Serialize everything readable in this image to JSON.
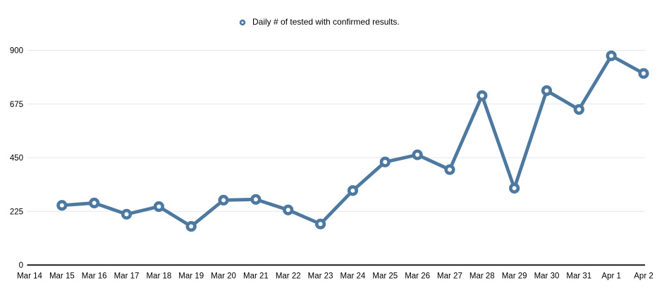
{
  "chart_data": {
    "type": "line",
    "legend": "Daily # of tested with confirmed results.",
    "legend_position": "top-center",
    "categories": [
      "Mar 14",
      "Mar 15",
      "Mar 16",
      "Mar 17",
      "Mar 18",
      "Mar 19",
      "Mar 20",
      "Mar 21",
      "Mar 22",
      "Mar 23",
      "Mar 24",
      "Mar 25",
      "Mar 26",
      "Mar 27",
      "Mar 28",
      "Mar 29",
      "Mar 30",
      "Mar 31",
      "Apr 1",
      "Apr 2"
    ],
    "series": [
      {
        "name": "Daily # of tested with confirmed results.",
        "values": [
          null,
          250,
          260,
          213,
          245,
          162,
          272,
          275,
          231,
          172,
          312,
          432,
          462,
          400,
          710,
          322,
          731,
          652,
          877,
          803
        ]
      }
    ],
    "yticks": [
      0,
      225,
      450,
      675,
      900
    ],
    "ylim": [
      0,
      900
    ],
    "grid": true,
    "colors": {
      "series": "#4d79a1",
      "grid": "#e7e7e7",
      "axis": "#1a1a1a",
      "text": "#000000",
      "marker_fill": "#ffffff"
    }
  }
}
